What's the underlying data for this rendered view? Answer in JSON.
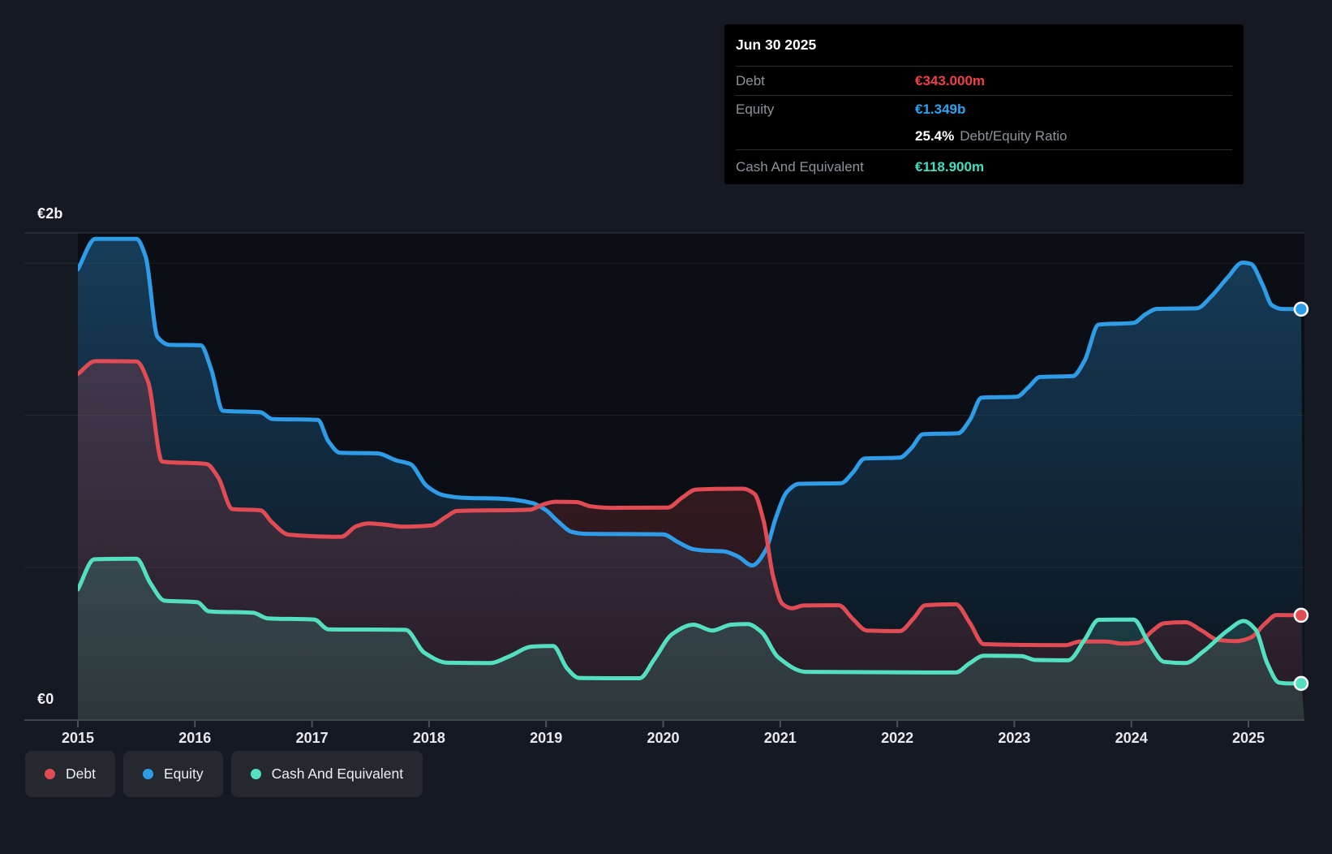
{
  "tooltip": {
    "date": "Jun 30 2025",
    "debt": {
      "label": "Debt",
      "value": "€343.000m",
      "color": "#ef4046"
    },
    "equity": {
      "label": "Equity",
      "value": "€1.349b",
      "color": "#2aa3f1"
    },
    "ratio": {
      "value": "25.4%",
      "label": "Debt/Equity Ratio"
    },
    "cash": {
      "label": "Cash And Equivalent",
      "value": "€118.900m",
      "color": "#43dec0"
    }
  },
  "axis": {
    "y_max_label": "€2b",
    "y_zero_label": "€0",
    "x_labels": [
      "2015",
      "2016",
      "2017",
      "2018",
      "2019",
      "2020",
      "2021",
      "2022",
      "2023",
      "2024",
      "2025"
    ]
  },
  "legend": [
    {
      "id": "debt",
      "label": "Debt",
      "color": "#e04b54"
    },
    {
      "id": "equity",
      "label": "Equity",
      "color": "#2f9ce8"
    },
    {
      "id": "cash",
      "label": "Cash And Equivalent",
      "color": "#54dfc0"
    }
  ],
  "chart_data": {
    "type": "area",
    "unit": "EUR millions",
    "x_range": [
      2015,
      2025.45
    ],
    "ylim": [
      0,
      2000
    ],
    "gridline_step_m": 500,
    "grid": true,
    "legend_position": "bottom-left",
    "series": [
      {
        "name": "Equity",
        "color": "#2f9ce8",
        "points": [
          [
            2015.0,
            1480
          ],
          [
            2015.15,
            1580
          ],
          [
            2015.5,
            1580
          ],
          [
            2015.58,
            1520
          ],
          [
            2015.68,
            1258
          ],
          [
            2015.78,
            1232
          ],
          [
            2016.05,
            1230
          ],
          [
            2016.14,
            1150
          ],
          [
            2016.24,
            1015
          ],
          [
            2016.56,
            1010
          ],
          [
            2016.66,
            988
          ],
          [
            2017.05,
            985
          ],
          [
            2017.14,
            915
          ],
          [
            2017.24,
            877
          ],
          [
            2017.56,
            875
          ],
          [
            2017.72,
            852
          ],
          [
            2017.84,
            840
          ],
          [
            2017.98,
            768
          ],
          [
            2018.12,
            738
          ],
          [
            2018.3,
            729
          ],
          [
            2018.62,
            726
          ],
          [
            2018.88,
            712
          ],
          [
            2019.0,
            688
          ],
          [
            2019.1,
            652
          ],
          [
            2019.22,
            617
          ],
          [
            2019.32,
            611
          ],
          [
            2020.0,
            609
          ],
          [
            2020.12,
            585
          ],
          [
            2020.26,
            560
          ],
          [
            2020.34,
            556
          ],
          [
            2020.52,
            553
          ],
          [
            2020.64,
            536
          ],
          [
            2020.76,
            507
          ],
          [
            2020.88,
            560
          ],
          [
            2020.96,
            660
          ],
          [
            2021.06,
            750
          ],
          [
            2021.16,
            775
          ],
          [
            2021.52,
            777
          ],
          [
            2021.62,
            812
          ],
          [
            2021.72,
            858
          ],
          [
            2022.02,
            861
          ],
          [
            2022.12,
            892
          ],
          [
            2022.22,
            938
          ],
          [
            2022.52,
            941
          ],
          [
            2022.62,
            985
          ],
          [
            2022.72,
            1058
          ],
          [
            2023.02,
            1061
          ],
          [
            2023.12,
            1092
          ],
          [
            2023.22,
            1126
          ],
          [
            2023.5,
            1129
          ],
          [
            2023.6,
            1180
          ],
          [
            2023.72,
            1298
          ],
          [
            2024.02,
            1304
          ],
          [
            2024.12,
            1332
          ],
          [
            2024.22,
            1350
          ],
          [
            2024.56,
            1352
          ],
          [
            2024.68,
            1390
          ],
          [
            2024.82,
            1452
          ],
          [
            2024.95,
            1502
          ],
          [
            2025.02,
            1498
          ],
          [
            2025.12,
            1430
          ],
          [
            2025.2,
            1362
          ],
          [
            2025.28,
            1350
          ],
          [
            2025.45,
            1349
          ]
        ]
      },
      {
        "name": "Debt",
        "color": "#e04b54",
        "points": [
          [
            2015.0,
            1136
          ],
          [
            2015.15,
            1178
          ],
          [
            2015.5,
            1177
          ],
          [
            2015.6,
            1110
          ],
          [
            2015.72,
            848
          ],
          [
            2016.1,
            840
          ],
          [
            2016.2,
            795
          ],
          [
            2016.32,
            692
          ],
          [
            2016.56,
            688
          ],
          [
            2016.66,
            648
          ],
          [
            2016.8,
            608
          ],
          [
            2017.25,
            601
          ],
          [
            2017.38,
            636
          ],
          [
            2017.48,
            645
          ],
          [
            2017.62,
            641
          ],
          [
            2017.78,
            634
          ],
          [
            2018.02,
            638
          ],
          [
            2018.14,
            665
          ],
          [
            2018.24,
            686
          ],
          [
            2018.86,
            690
          ],
          [
            2018.98,
            708
          ],
          [
            2019.08,
            716
          ],
          [
            2019.26,
            715
          ],
          [
            2019.38,
            701
          ],
          [
            2019.56,
            696
          ],
          [
            2020.04,
            697
          ],
          [
            2020.16,
            729
          ],
          [
            2020.28,
            756
          ],
          [
            2020.68,
            759
          ],
          [
            2020.78,
            742
          ],
          [
            2020.86,
            650
          ],
          [
            2020.94,
            470
          ],
          [
            2021.02,
            380
          ],
          [
            2021.1,
            366
          ],
          [
            2021.2,
            375
          ],
          [
            2021.5,
            376
          ],
          [
            2021.62,
            331
          ],
          [
            2021.74,
            293
          ],
          [
            2022.02,
            291
          ],
          [
            2022.14,
            333
          ],
          [
            2022.24,
            376
          ],
          [
            2022.5,
            379
          ],
          [
            2022.62,
            318
          ],
          [
            2022.74,
            248
          ],
          [
            2023.44,
            245
          ],
          [
            2023.56,
            257
          ],
          [
            2023.78,
            257
          ],
          [
            2023.92,
            250
          ],
          [
            2024.06,
            253
          ],
          [
            2024.18,
            292
          ],
          [
            2024.28,
            317
          ],
          [
            2024.46,
            320
          ],
          [
            2024.6,
            293
          ],
          [
            2024.74,
            262
          ],
          [
            2024.9,
            258
          ],
          [
            2025.02,
            270
          ],
          [
            2025.14,
            315
          ],
          [
            2025.24,
            344
          ],
          [
            2025.45,
            343
          ]
        ]
      },
      {
        "name": "Cash And Equivalent",
        "color": "#54dfc0",
        "points": [
          [
            2015.0,
            428
          ],
          [
            2015.14,
            527
          ],
          [
            2015.5,
            529
          ],
          [
            2015.62,
            448
          ],
          [
            2015.74,
            391
          ],
          [
            2016.02,
            386
          ],
          [
            2016.12,
            356
          ],
          [
            2016.5,
            351
          ],
          [
            2016.62,
            333
          ],
          [
            2017.02,
            329
          ],
          [
            2017.14,
            297
          ],
          [
            2017.8,
            295
          ],
          [
            2017.96,
            220
          ],
          [
            2018.16,
            187
          ],
          [
            2018.52,
            186
          ],
          [
            2018.68,
            207
          ],
          [
            2018.88,
            240
          ],
          [
            2019.06,
            242
          ],
          [
            2019.18,
            168
          ],
          [
            2019.28,
            137
          ],
          [
            2019.8,
            136
          ],
          [
            2019.92,
            196
          ],
          [
            2020.08,
            282
          ],
          [
            2020.26,
            312
          ],
          [
            2020.42,
            293
          ],
          [
            2020.58,
            312
          ],
          [
            2020.72,
            314
          ],
          [
            2020.84,
            288
          ],
          [
            2020.98,
            206
          ],
          [
            2021.22,
            157
          ],
          [
            2022.5,
            155
          ],
          [
            2022.62,
            186
          ],
          [
            2022.74,
            210
          ],
          [
            2023.06,
            209
          ],
          [
            2023.18,
            196
          ],
          [
            2023.46,
            195
          ],
          [
            2023.6,
            262
          ],
          [
            2023.72,
            328
          ],
          [
            2024.02,
            329
          ],
          [
            2024.14,
            258
          ],
          [
            2024.28,
            190
          ],
          [
            2024.46,
            186
          ],
          [
            2024.62,
            226
          ],
          [
            2024.82,
            292
          ],
          [
            2024.96,
            324
          ],
          [
            2025.06,
            296
          ],
          [
            2025.16,
            186
          ],
          [
            2025.26,
            122
          ],
          [
            2025.34,
            119
          ],
          [
            2025.45,
            119
          ]
        ]
      }
    ]
  }
}
